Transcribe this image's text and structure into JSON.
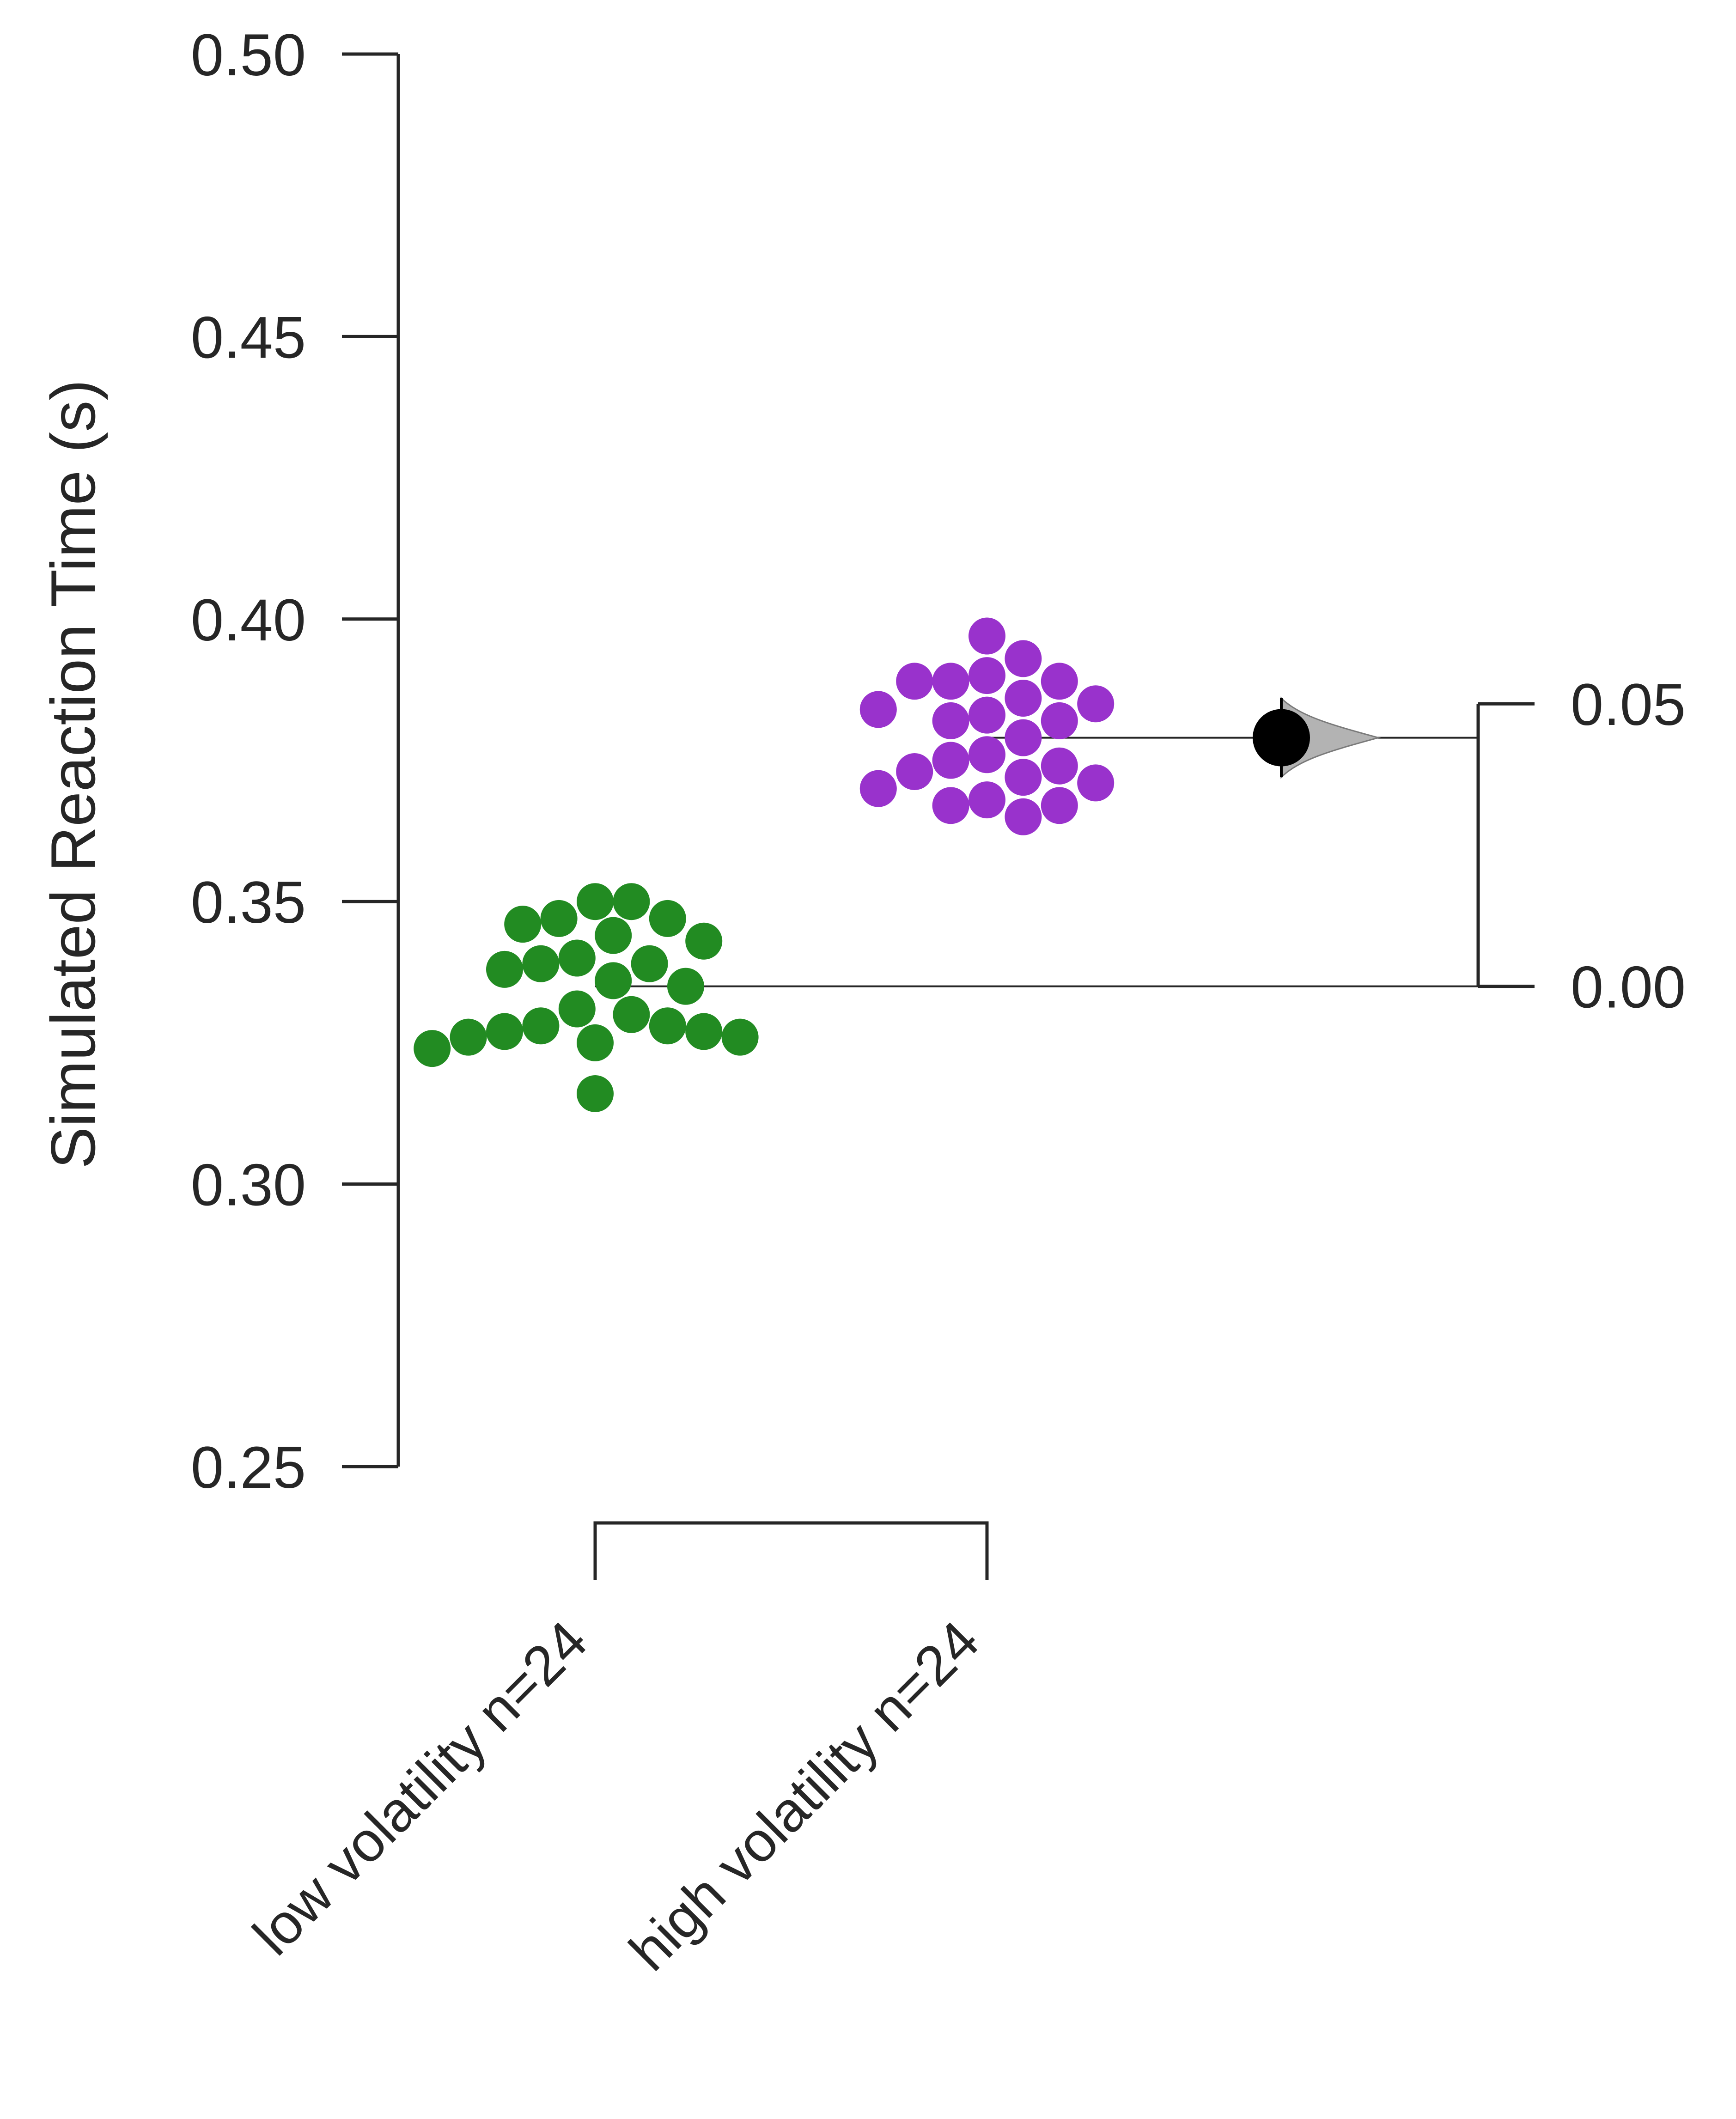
{
  "chart_data": {
    "type": "scatter",
    "subtype": "estimation-swarm-plot",
    "ylabel": "Simulated Reaction Time (s)",
    "ylim": [
      0.25,
      0.5
    ],
    "y_ticks": [
      0.25,
      0.3,
      0.35,
      0.4,
      0.45,
      0.5
    ],
    "y_tick_labels": [
      "0.25",
      "0.30",
      "0.35",
      "0.40",
      "0.45",
      "0.50"
    ],
    "categories": [
      "low volatility n=24",
      "high volatility n=24"
    ],
    "series": [
      {
        "name": "low volatility n=24",
        "color": "#228b22",
        "mean": 0.335,
        "values": [
          0.35,
          0.347,
          0.35,
          0.344,
          0.343,
          0.346,
          0.347,
          0.34,
          0.339,
          0.336,
          0.335,
          0.338,
          0.339,
          0.331,
          0.33,
          0.328,
          0.327,
          0.326,
          0.325,
          0.324,
          0.326,
          0.327,
          0.328,
          0.316
        ]
      },
      {
        "name": "high volatility n=24",
        "color": "#9932cc",
        "mean": 0.379,
        "values": [
          0.397,
          0.393,
          0.389,
          0.389,
          0.389,
          0.39,
          0.385,
          0.386,
          0.382,
          0.382,
          0.383,
          0.384,
          0.379,
          0.375,
          0.376,
          0.372,
          0.373,
          0.374,
          0.37,
          0.367,
          0.365,
          0.367,
          0.368,
          0.371
        ]
      }
    ],
    "delta_axis": {
      "ticks": [
        0.0,
        0.05
      ],
      "tick_labels": [
        "0.00",
        "0.05"
      ],
      "bracket_range": [
        0.0,
        0.05
      ]
    },
    "effect": {
      "mean_difference": 0.044,
      "ci": [
        0.037,
        0.051
      ],
      "marker_color": "#000000",
      "distribution_color": "#b3b3b3"
    },
    "grid": false,
    "legend": "none"
  }
}
